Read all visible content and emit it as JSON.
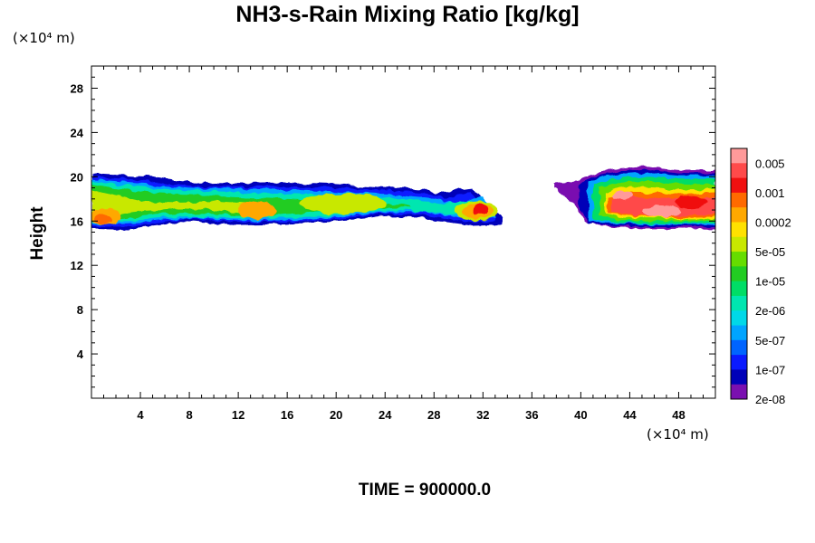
{
  "chart_data": {
    "type": "heatmap",
    "title": "NH3-s-Rain Mixing Ratio [kg/kg]",
    "ylabel": "Height",
    "x_unit": "(×10⁴ m)",
    "y_unit": "(×10⁴ m)",
    "footer": "TIME = 900000.0",
    "xlim": [
      0,
      51
    ],
    "ylim": [
      0,
      30
    ],
    "x_ticks": [
      "4",
      "8",
      "12",
      "16",
      "20",
      "24",
      "28",
      "32",
      "36",
      "40",
      "44",
      "48"
    ],
    "y_ticks": [
      "4",
      "8",
      "12",
      "16",
      "20",
      "24",
      "28"
    ],
    "colorbar": {
      "labels": [
        "0.005",
        "0.001",
        "0.0002",
        "5e-05",
        "1e-05",
        "2e-06",
        "5e-07",
        "1e-07",
        "2e-08"
      ],
      "colors": [
        "#ff9a9a",
        "#ff4a4a",
        "#f01010",
        "#ff6a00",
        "#ffa800",
        "#ffe100",
        "#c8e800",
        "#66dd00",
        "#22cc22",
        "#00dd66",
        "#00e6b0",
        "#00d8e8",
        "#00a4ff",
        "#0064ff",
        "#0a1aff",
        "#0000b8",
        "#7a10b0"
      ]
    },
    "regions": [
      {
        "x": [
          0.0,
          33.5
        ],
        "y": [
          15.2,
          20.3
        ],
        "peak": "1e-05 to 0.001",
        "note": "main band, strongest near x=1, x=14 and x=31-33"
      },
      {
        "x": [
          38.0,
          51.0
        ],
        "y": [
          15.3,
          21.0
        ],
        "peak": "0.005",
        "note": "strong core near x=42-49"
      }
    ]
  }
}
